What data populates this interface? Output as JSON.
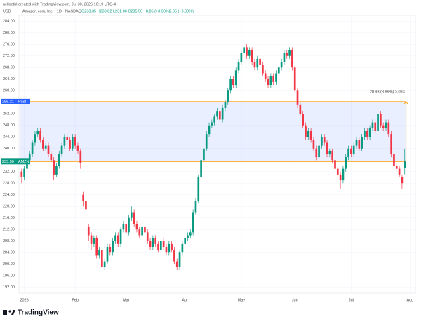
{
  "header": {
    "credit": "nelloethl created with TradingView.com, Jul 30, 2026 16:19 UTC-4",
    "symbol": "Amazon.com, Inc. · 1D · NASDAQ",
    "ohlc": "O233.35 H239.82 L231.06 C235.50 +8.85 (+3.90%)",
    "change": "+8.85 (+3.90%)",
    "currency": "USD"
  },
  "footer": {
    "brand": "TradingView"
  },
  "chart_data": {
    "type": "candlestick",
    "up_color": "#089981",
    "down_color": "#f23645",
    "grid": true,
    "ylim": [
      190,
      286
    ],
    "yticks": [
      {
        "value": 284,
        "label": "284.00"
      },
      {
        "value": 280,
        "label": "280.00"
      },
      {
        "value": 276,
        "label": "276.00"
      },
      {
        "value": 272,
        "label": "272.00"
      },
      {
        "value": 268,
        "label": "268.00"
      },
      {
        "value": 264,
        "label": "264.00"
      },
      {
        "value": 260,
        "label": "260.00"
      },
      {
        "value": 252,
        "label": "252.00"
      },
      {
        "value": 248,
        "label": "248.00"
      },
      {
        "value": 244,
        "label": "244.00"
      },
      {
        "value": 240,
        "label": "240.00"
      },
      {
        "value": 232,
        "label": "232.00"
      },
      {
        "value": 228,
        "label": "228.00"
      },
      {
        "value": 224,
        "label": "224.00"
      },
      {
        "value": 220,
        "label": "220.00"
      },
      {
        "value": 216,
        "label": "216.00"
      },
      {
        "value": 212,
        "label": "212.00"
      },
      {
        "value": 208,
        "label": "208.00"
      },
      {
        "value": 204,
        "label": "204.00"
      },
      {
        "value": 200,
        "label": "200.00"
      },
      {
        "value": 196,
        "label": "196.00"
      },
      {
        "value": 192,
        "label": "192.00"
      }
    ],
    "xlim": [
      -1,
      147
    ],
    "xticks": [
      {
        "value": 1,
        "label": "2026"
      },
      {
        "value": 20,
        "label": "Feb"
      },
      {
        "value": 39,
        "label": "Mar"
      },
      {
        "value": 61,
        "label": "Apr"
      },
      {
        "value": 82,
        "label": "May"
      },
      {
        "value": 102,
        "label": "Jun"
      },
      {
        "value": 123,
        "label": "Jul"
      },
      {
        "value": 145,
        "label": "Aug"
      }
    ],
    "levels": [
      {
        "value": 256.21,
        "label": "256.21",
        "tag": "Past",
        "color": "#2962ff"
      },
      {
        "value": 235.5,
        "label": "235.50",
        "tag": "AMZN",
        "color": "#089981"
      }
    ],
    "zone_color": "#ff9800",
    "measure": "20.93 (8.89%) 2,093",
    "ohlc": [
      [
        232,
        233,
        228,
        230
      ],
      [
        230,
        234,
        229,
        233
      ],
      [
        233,
        237,
        232,
        236
      ],
      [
        236,
        239,
        235,
        238
      ],
      [
        238,
        243,
        237,
        242
      ],
      [
        242,
        246,
        241,
        245
      ],
      [
        245,
        247,
        244,
        246
      ],
      [
        246,
        247,
        242,
        243
      ],
      [
        243,
        244,
        239,
        240
      ],
      [
        240,
        242,
        239,
        241
      ],
      [
        241,
        242,
        237,
        238
      ],
      [
        238,
        239,
        235,
        236
      ],
      [
        236,
        237,
        229,
        231
      ],
      [
        231,
        235,
        230,
        234
      ],
      [
        234,
        239,
        233,
        238
      ],
      [
        238,
        242,
        237,
        241
      ],
      [
        241,
        245,
        240,
        244
      ],
      [
        244,
        245,
        242,
        243
      ],
      [
        243,
        244,
        239,
        240
      ],
      [
        240,
        245,
        239,
        244
      ],
      [
        244,
        245,
        240,
        241
      ],
      [
        241,
        242,
        238,
        239
      ],
      [
        239,
        240,
        233,
        235
      ],
      [
        224,
        225,
        220,
        222
      ],
      [
        222,
        223,
        218,
        219
      ],
      [
        213,
        214,
        208,
        210
      ],
      [
        210,
        211,
        205,
        207
      ],
      [
        207,
        210,
        206,
        209
      ],
      [
        209,
        210,
        202,
        203
      ],
      [
        203,
        206,
        202,
        205
      ],
      [
        205,
        206,
        197,
        199
      ],
      [
        199,
        202,
        198,
        201
      ],
      [
        201,
        207,
        200,
        206
      ],
      [
        206,
        207,
        203,
        204
      ],
      [
        204,
        209,
        203,
        208
      ],
      [
        208,
        211,
        207,
        210
      ],
      [
        210,
        211,
        206,
        207
      ],
      [
        207,
        213,
        206,
        212
      ],
      [
        212,
        215,
        211,
        214
      ],
      [
        214,
        215,
        210,
        211
      ],
      [
        211,
        217,
        210,
        216
      ],
      [
        216,
        220,
        215,
        218
      ],
      [
        218,
        219,
        213,
        214
      ],
      [
        214,
        215,
        211,
        212
      ],
      [
        212,
        213,
        209,
        210
      ],
      [
        210,
        214,
        209,
        213
      ],
      [
        213,
        214,
        210,
        211
      ],
      [
        211,
        212,
        207,
        208
      ],
      [
        208,
        209,
        205,
        206
      ],
      [
        206,
        210,
        205,
        209
      ],
      [
        209,
        210,
        206,
        207
      ],
      [
        207,
        208,
        204,
        205
      ],
      [
        205,
        209,
        204,
        208
      ],
      [
        208,
        209,
        205,
        206
      ],
      [
        206,
        207,
        203,
        204
      ],
      [
        204,
        208,
        203,
        207
      ],
      [
        207,
        208,
        204,
        205
      ],
      [
        205,
        206,
        200,
        201
      ],
      [
        201,
        202,
        198,
        199
      ],
      [
        199,
        205,
        198,
        204
      ],
      [
        204,
        208,
        203,
        207
      ],
      [
        207,
        210,
        206,
        209
      ],
      [
        209,
        211,
        208,
        210
      ],
      [
        210,
        212,
        209,
        211
      ],
      [
        211,
        219,
        210,
        218
      ],
      [
        218,
        223,
        217,
        222
      ],
      [
        222,
        231,
        221,
        230
      ],
      [
        230,
        237,
        229,
        236
      ],
      [
        236,
        241,
        235,
        240
      ],
      [
        240,
        246,
        239,
        245
      ],
      [
        245,
        249,
        244,
        248
      ],
      [
        248,
        250,
        247,
        249
      ],
      [
        249,
        252,
        248,
        251
      ],
      [
        251,
        254,
        250,
        253
      ],
      [
        253,
        254,
        249,
        250
      ],
      [
        250,
        255,
        249,
        254
      ],
      [
        254,
        257,
        253,
        256
      ],
      [
        256,
        261,
        255,
        260
      ],
      [
        260,
        265,
        259,
        264
      ],
      [
        264,
        265,
        261,
        262
      ],
      [
        262,
        268,
        261,
        267
      ],
      [
        267,
        271,
        266,
        270
      ],
      [
        270,
        274,
        269,
        273
      ],
      [
        273,
        277,
        272,
        275
      ],
      [
        275,
        276,
        271,
        272
      ],
      [
        272,
        275,
        271,
        274
      ],
      [
        274,
        275,
        269,
        270
      ],
      [
        270,
        271,
        267,
        268
      ],
      [
        268,
        272,
        267,
        271
      ],
      [
        271,
        272,
        268,
        269
      ],
      [
        269,
        270,
        265,
        266
      ],
      [
        266,
        267,
        263,
        264
      ],
      [
        264,
        265,
        261,
        262
      ],
      [
        262,
        266,
        261,
        265
      ],
      [
        265,
        266,
        262,
        263
      ],
      [
        263,
        267,
        262,
        266
      ],
      [
        266,
        269,
        265,
        268
      ],
      [
        268,
        271,
        267,
        270
      ],
      [
        270,
        274,
        269,
        273
      ],
      [
        273,
        274,
        271,
        272
      ],
      [
        272,
        275,
        271,
        274
      ],
      [
        274,
        275,
        267,
        268
      ],
      [
        268,
        269,
        259,
        260
      ],
      [
        260,
        261,
        254,
        255
      ],
      [
        255,
        256,
        251,
        252
      ],
      [
        252,
        253,
        247,
        248
      ],
      [
        248,
        249,
        243,
        244
      ],
      [
        244,
        247,
        243,
        246
      ],
      [
        246,
        247,
        242,
        243
      ],
      [
        243,
        244,
        239,
        240
      ],
      [
        240,
        241,
        236,
        237
      ],
      [
        237,
        242,
        236,
        241
      ],
      [
        241,
        245,
        240,
        244
      ],
      [
        244,
        245,
        241,
        242
      ],
      [
        242,
        243,
        237,
        238
      ],
      [
        238,
        240,
        237,
        239
      ],
      [
        239,
        240,
        235,
        236
      ],
      [
        236,
        237,
        232,
        233
      ],
      [
        233,
        234,
        230,
        231
      ],
      [
        231,
        232,
        226,
        229
      ],
      [
        229,
        234,
        228,
        233
      ],
      [
        233,
        238,
        232,
        237
      ],
      [
        237,
        241,
        236,
        240
      ],
      [
        240,
        241,
        237,
        238
      ],
      [
        238,
        242,
        237,
        241
      ],
      [
        241,
        244,
        240,
        243
      ],
      [
        243,
        244,
        239,
        240
      ],
      [
        240,
        245,
        239,
        244
      ],
      [
        244,
        247,
        243,
        246
      ],
      [
        246,
        247,
        243,
        244
      ],
      [
        244,
        248,
        243,
        247
      ],
      [
        247,
        250,
        246,
        249
      ],
      [
        249,
        250,
        245,
        246
      ],
      [
        246,
        255,
        245,
        252
      ],
      [
        252,
        253,
        247,
        248
      ],
      [
        248,
        249,
        246,
        247
      ],
      [
        247,
        250,
        246,
        249
      ],
      [
        249,
        250,
        244,
        245
      ],
      [
        245,
        246,
        237,
        238
      ],
      [
        238,
        239,
        233,
        234
      ],
      [
        234,
        235,
        232,
        233
      ],
      [
        233,
        234,
        230,
        231
      ],
      [
        230,
        231,
        226,
        228
      ],
      [
        233.35,
        239.82,
        231.06,
        235.5
      ]
    ]
  }
}
